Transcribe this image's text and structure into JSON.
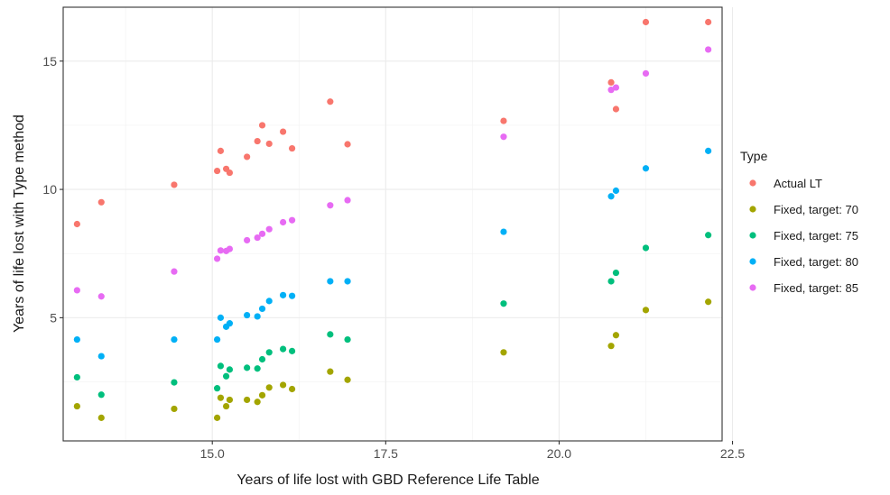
{
  "chart_data": {
    "type": "scatter",
    "xlabel": "Years of life lost with GBD Reference Life Table",
    "ylabel": "Years of life lost with Type method",
    "xlim": [
      12.85,
      22.35
    ],
    "ylim": [
      0.2,
      17.1
    ],
    "x_ticks": [
      15.0,
      17.5,
      20.0,
      22.5
    ],
    "x_tick_labels": [
      "15.0",
      "17.5",
      "20.0",
      "22.5"
    ],
    "y_ticks": [
      5,
      10,
      15
    ],
    "y_tick_labels": [
      "5",
      "10",
      "15"
    ],
    "grid": true,
    "legend": {
      "title": "Type",
      "position": "right"
    },
    "x": [
      13.05,
      13.4,
      14.45,
      15.07,
      15.12,
      15.2,
      15.25,
      15.5,
      15.65,
      15.72,
      15.82,
      16.02,
      16.15,
      16.7,
      16.95,
      19.2,
      20.75,
      20.82,
      21.25,
      22.15
    ],
    "series": [
      {
        "name": "Actual LT",
        "color": "#F8766D",
        "values": [
          8.65,
          9.5,
          10.18,
          10.72,
          11.5,
          10.8,
          10.65,
          11.27,
          11.88,
          12.5,
          11.78,
          12.25,
          11.6,
          13.42,
          11.76,
          12.67,
          14.17,
          13.13,
          16.52,
          16.52
        ]
      },
      {
        "name": "Fixed, target: 70",
        "color": "#A3A500",
        "values": [
          1.55,
          1.1,
          1.45,
          1.1,
          1.88,
          1.55,
          1.8,
          1.8,
          1.72,
          1.98,
          2.28,
          2.38,
          2.22,
          2.9,
          2.58,
          3.65,
          3.9,
          4.32,
          5.3,
          5.62
        ]
      },
      {
        "name": "Fixed, target: 75",
        "color": "#00BF7D",
        "values": [
          2.68,
          2.0,
          2.48,
          2.25,
          3.12,
          2.72,
          2.98,
          3.05,
          3.02,
          3.38,
          3.65,
          3.78,
          3.7,
          4.35,
          4.15,
          5.55,
          6.42,
          6.75,
          7.72,
          8.22
        ]
      },
      {
        "name": "Fixed, target: 80",
        "color": "#00B0F6",
        "values": [
          4.15,
          3.5,
          4.15,
          4.15,
          5.0,
          4.65,
          4.78,
          5.1,
          5.05,
          5.35,
          5.65,
          5.88,
          5.85,
          6.42,
          6.42,
          8.35,
          9.73,
          9.95,
          10.82,
          11.5
        ]
      },
      {
        "name": "Fixed, target: 85",
        "color": "#E76BF3",
        "values": [
          6.07,
          5.83,
          6.8,
          7.3,
          7.62,
          7.6,
          7.68,
          8.02,
          8.12,
          8.27,
          8.45,
          8.72,
          8.8,
          9.38,
          9.58,
          12.05,
          13.88,
          13.97,
          14.52,
          15.45
        ]
      }
    ]
  }
}
